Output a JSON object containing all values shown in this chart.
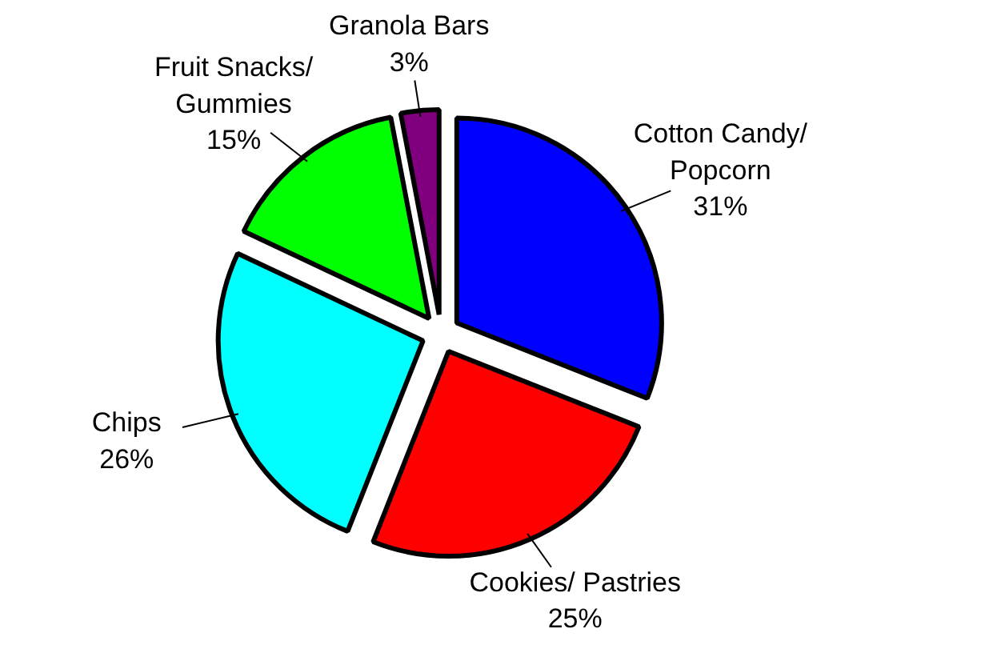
{
  "chart_data": {
    "type": "pie",
    "categories": [
      "Cotton Candy/\nPopcorn",
      "Cookies/ Pastries",
      "Chips",
      "Fruit Snacks/\nGummies",
      "Granola Bars"
    ],
    "values": [
      31,
      25,
      26,
      15,
      3
    ],
    "value_labels": [
      "31%",
      "25%",
      "26%",
      "15%",
      "3%"
    ],
    "colors": [
      "#0000ff",
      "#ff0000",
      "#00ffff",
      "#00ff00",
      "#800080"
    ]
  }
}
